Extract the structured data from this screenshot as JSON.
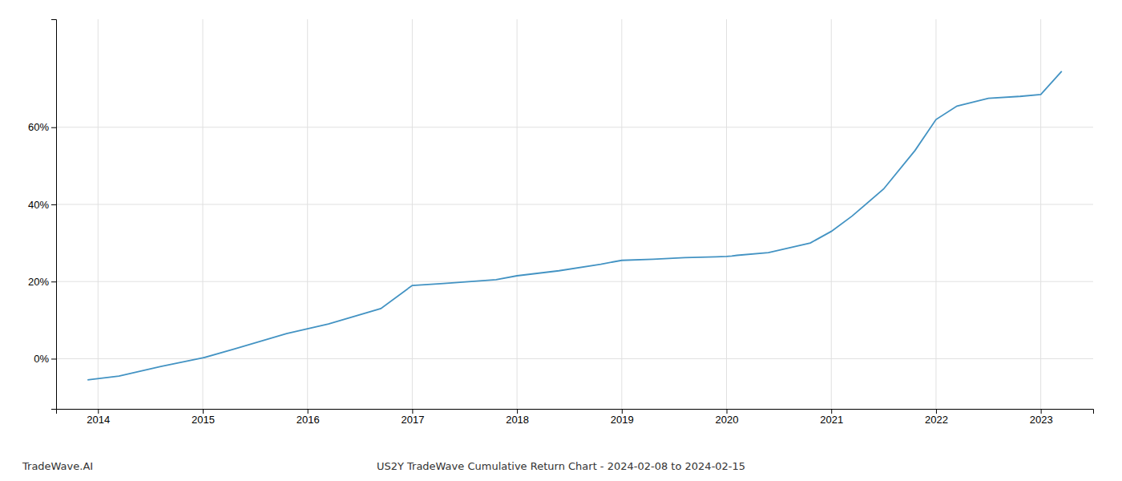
{
  "chart_data": {
    "type": "line",
    "title": "US2Y TradeWave Cumulative Return Chart - 2024-02-08 to 2024-02-15",
    "annotations": [
      "TradeWave.AI"
    ],
    "x": [
      2013.9,
      2014.2,
      2014.6,
      2015.0,
      2015.3,
      2015.8,
      2016.2,
      2016.7,
      2017.0,
      2017.3,
      2017.8,
      2018.0,
      2018.4,
      2018.8,
      2019.0,
      2019.3,
      2019.6,
      2019.9,
      2020.0,
      2020.05,
      2020.1,
      2020.4,
      2020.8,
      2021.0,
      2021.2,
      2021.5,
      2021.8,
      2022.0,
      2022.2,
      2022.5,
      2022.8,
      2023.0,
      2023.2
    ],
    "values": [
      -0.055,
      -0.045,
      -0.02,
      0.002,
      0.025,
      0.065,
      0.09,
      0.13,
      0.19,
      0.195,
      0.205,
      0.215,
      0.228,
      0.245,
      0.255,
      0.258,
      0.262,
      0.264,
      0.265,
      0.266,
      0.268,
      0.275,
      0.3,
      0.33,
      0.37,
      0.44,
      0.54,
      0.62,
      0.655,
      0.675,
      0.68,
      0.685,
      0.745
    ],
    "color": "#4393c3",
    "xlim": [
      2013.6,
      2023.5
    ],
    "xticks": [
      2014,
      2015,
      2016,
      2017,
      2018,
      2019,
      2020,
      2021,
      2022,
      2023
    ],
    "ylim": [
      -0.13,
      0.88
    ],
    "yticks": [
      {
        "value": 0.0,
        "label": "0%"
      },
      {
        "value": 0.2,
        "label": "20%"
      },
      {
        "value": 0.4,
        "label": "40%"
      },
      {
        "value": 0.6,
        "label": "60%"
      }
    ],
    "grid": true
  }
}
